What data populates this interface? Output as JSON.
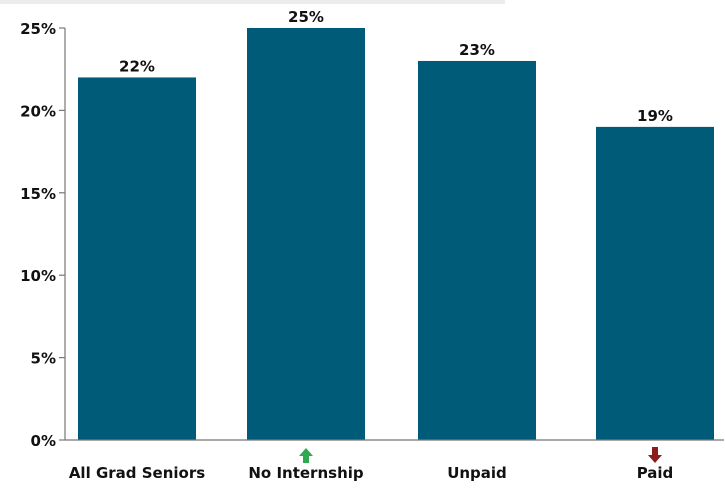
{
  "chart_data": {
    "type": "bar",
    "categories": [
      "All Grad Seniors",
      "No Internship",
      "Unpaid",
      "Paid"
    ],
    "values": [
      22,
      25,
      23,
      19
    ],
    "value_labels": [
      "22%",
      "25%",
      "23%",
      "19%"
    ],
    "ylim": [
      0,
      25
    ],
    "yticks": [
      0,
      5,
      10,
      15,
      20,
      25
    ],
    "ytick_labels": [
      "0%",
      "5%",
      "10%",
      "15%",
      "20%",
      "25%"
    ],
    "title": "",
    "xlabel": "",
    "ylabel": "",
    "grid": false,
    "legend": "none",
    "category_markers": [
      "none",
      "up-arrow-icon",
      "none",
      "down-arrow-icon"
    ]
  },
  "colors": {
    "bar": "#005b79",
    "axis": "#777777",
    "text": "#111111",
    "up_arrow": "#2fa84f",
    "down_arrow": "#8b1d1d"
  }
}
